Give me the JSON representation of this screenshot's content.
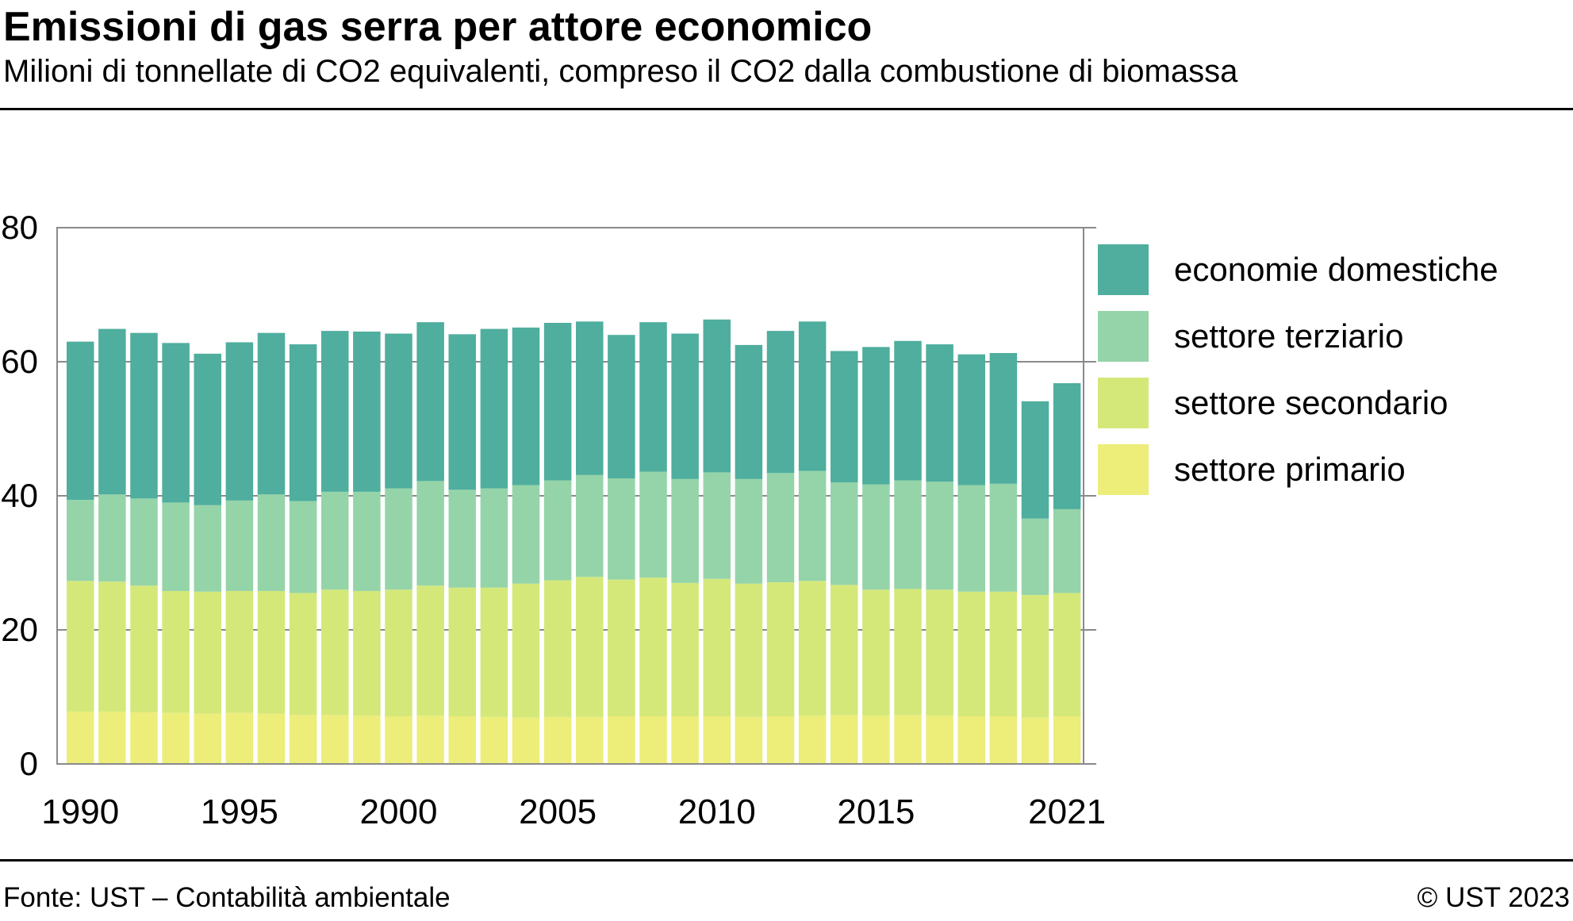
{
  "title": "Emissioni di gas serra per attore economico",
  "subtitle": "Milioni di tonnellate di CO2 equivalenti, compreso il CO2 dalla combustione di biomassa",
  "footer": {
    "source": "Fonte: UST – Contabilità ambientale",
    "copyright": "© UST 2023"
  },
  "chart_data": {
    "type": "bar",
    "stacked": true,
    "x": [
      1990,
      1991,
      1992,
      1993,
      1994,
      1995,
      1996,
      1997,
      1998,
      1999,
      2000,
      2001,
      2002,
      2003,
      2004,
      2005,
      2006,
      2007,
      2008,
      2009,
      2010,
      2011,
      2012,
      2013,
      2014,
      2015,
      2016,
      2017,
      2018,
      2019,
      2020,
      2021
    ],
    "xtick_labels": [
      "1990",
      "1995",
      "2000",
      "2005",
      "2010",
      "2015",
      "2021"
    ],
    "ylim": [
      0,
      80
    ],
    "yticks": [
      0,
      20,
      40,
      60,
      80
    ],
    "grid": true,
    "legend_position": "right",
    "series": [
      {
        "name": "settore primario",
        "color": "#eded7a",
        "values": [
          7.8,
          7.8,
          7.7,
          7.6,
          7.5,
          7.6,
          7.5,
          7.3,
          7.3,
          7.2,
          7.1,
          7.2,
          7.1,
          7.0,
          6.9,
          7.0,
          7.0,
          7.1,
          7.1,
          7.1,
          7.1,
          7.0,
          7.1,
          7.2,
          7.3,
          7.2,
          7.3,
          7.2,
          7.1,
          7.1,
          6.9,
          7.1
        ]
      },
      {
        "name": "settore secondario",
        "color": "#d4e87a",
        "values": [
          19.5,
          19.4,
          18.9,
          18.2,
          18.2,
          18.2,
          18.3,
          18.2,
          18.7,
          18.6,
          18.9,
          19.4,
          19.2,
          19.3,
          20.0,
          20.4,
          20.9,
          20.4,
          20.7,
          19.9,
          20.5,
          19.9,
          20.0,
          20.1,
          19.4,
          18.8,
          18.8,
          18.8,
          18.6,
          18.6,
          18.3,
          18.4
        ]
      },
      {
        "name": "settore terziario",
        "color": "#95d4a9",
        "values": [
          12.1,
          13.0,
          13.0,
          13.2,
          12.9,
          13.5,
          14.4,
          13.7,
          14.6,
          14.8,
          15.1,
          15.6,
          14.6,
          14.8,
          14.7,
          14.9,
          15.2,
          15.1,
          15.8,
          15.5,
          15.9,
          15.6,
          16.3,
          16.4,
          15.3,
          15.7,
          16.2,
          16.1,
          15.9,
          16.1,
          11.4,
          12.5
        ]
      },
      {
        "name": "economie domestiche",
        "color": "#4fae9e",
        "values": [
          23.6,
          24.7,
          24.7,
          23.8,
          22.6,
          23.6,
          24.1,
          23.4,
          24.0,
          23.9,
          23.1,
          23.7,
          23.2,
          23.8,
          23.5,
          23.5,
          22.9,
          21.4,
          22.3,
          21.7,
          22.8,
          20.0,
          21.2,
          22.3,
          19.6,
          20.5,
          20.8,
          20.5,
          19.5,
          19.5,
          17.5,
          18.8
        ]
      }
    ]
  }
}
